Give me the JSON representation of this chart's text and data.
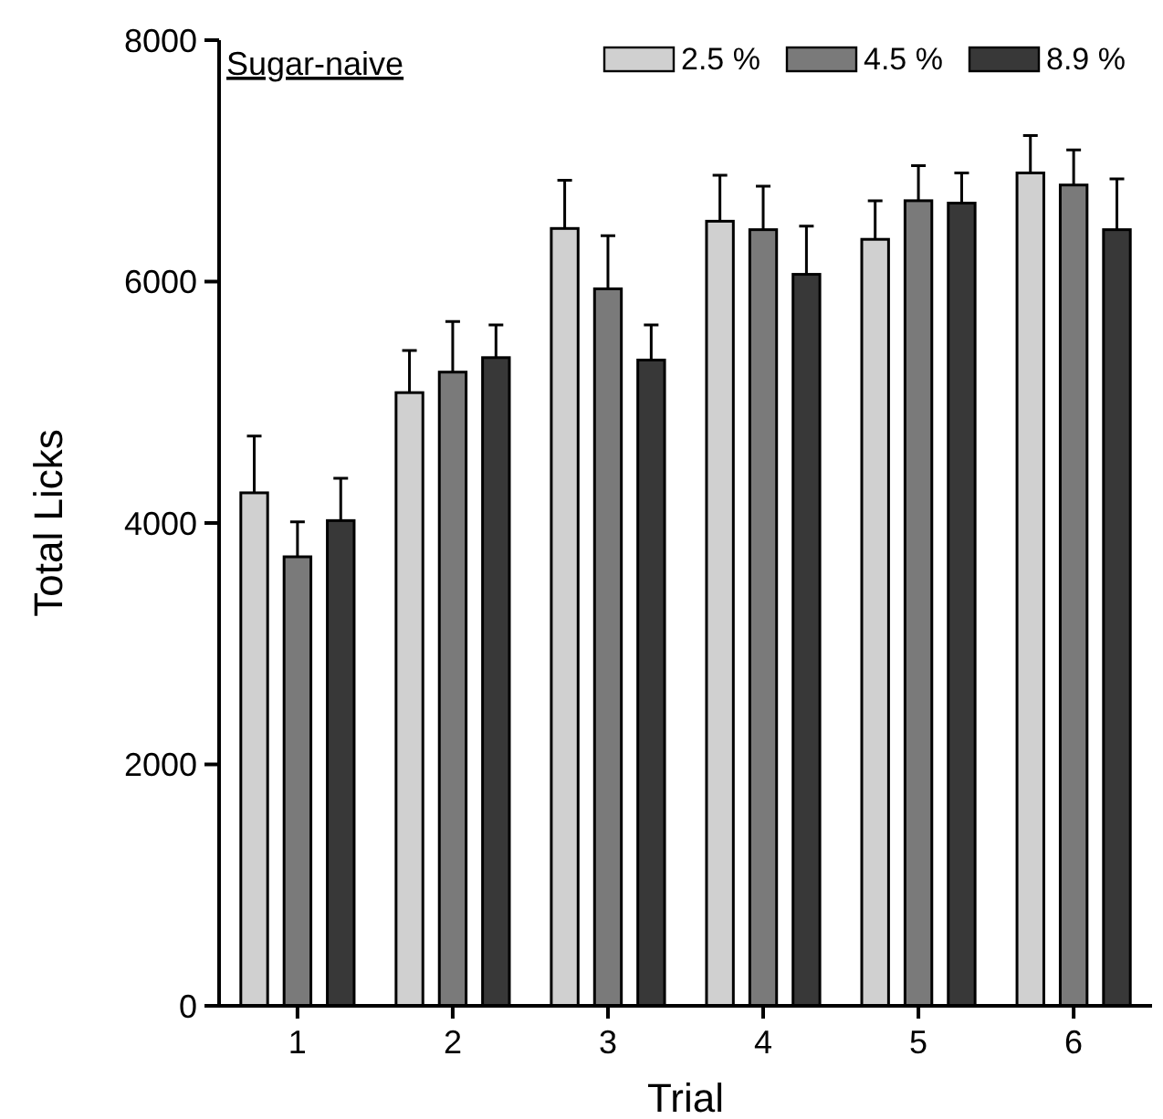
{
  "chart_data": {
    "type": "bar",
    "title": "Sugar-naive",
    "xlabel": "Trial",
    "ylabel": "Total Licks",
    "categories": [
      "1",
      "2",
      "3",
      "4",
      "5",
      "6"
    ],
    "series": [
      {
        "name": "2.5 %",
        "color": "#d0d0d0",
        "values": [
          4250,
          5080,
          6440,
          6500,
          6350,
          6900
        ],
        "errors": [
          [
            4250,
            4720
          ],
          [
            5080,
            5430
          ],
          [
            6440,
            6840
          ],
          [
            6500,
            6880
          ],
          [
            6350,
            6670
          ],
          [
            6900,
            7210
          ]
        ]
      },
      {
        "name": "4.5 %",
        "color": "#7a7a7a",
        "values": [
          3720,
          5250,
          5940,
          6430,
          6670,
          6800
        ],
        "errors": [
          [
            3720,
            4010
          ],
          [
            5250,
            5670
          ],
          [
            5940,
            6380
          ],
          [
            6430,
            6790
          ],
          [
            6670,
            6960
          ],
          [
            6800,
            7090
          ]
        ]
      },
      {
        "name": "8.9 %",
        "color": "#383838",
        "values": [
          4020,
          5370,
          5350,
          6060,
          6650,
          6430
        ],
        "errors": [
          [
            4020,
            4370
          ],
          [
            5370,
            5640
          ],
          [
            5350,
            5640
          ],
          [
            6060,
            6460
          ],
          [
            6650,
            6900
          ],
          [
            6430,
            6850
          ]
        ]
      }
    ],
    "ylim": [
      0,
      8000
    ],
    "yticks": [
      0,
      2000,
      4000,
      6000,
      8000
    ],
    "legend": "top right",
    "grid": false
  }
}
